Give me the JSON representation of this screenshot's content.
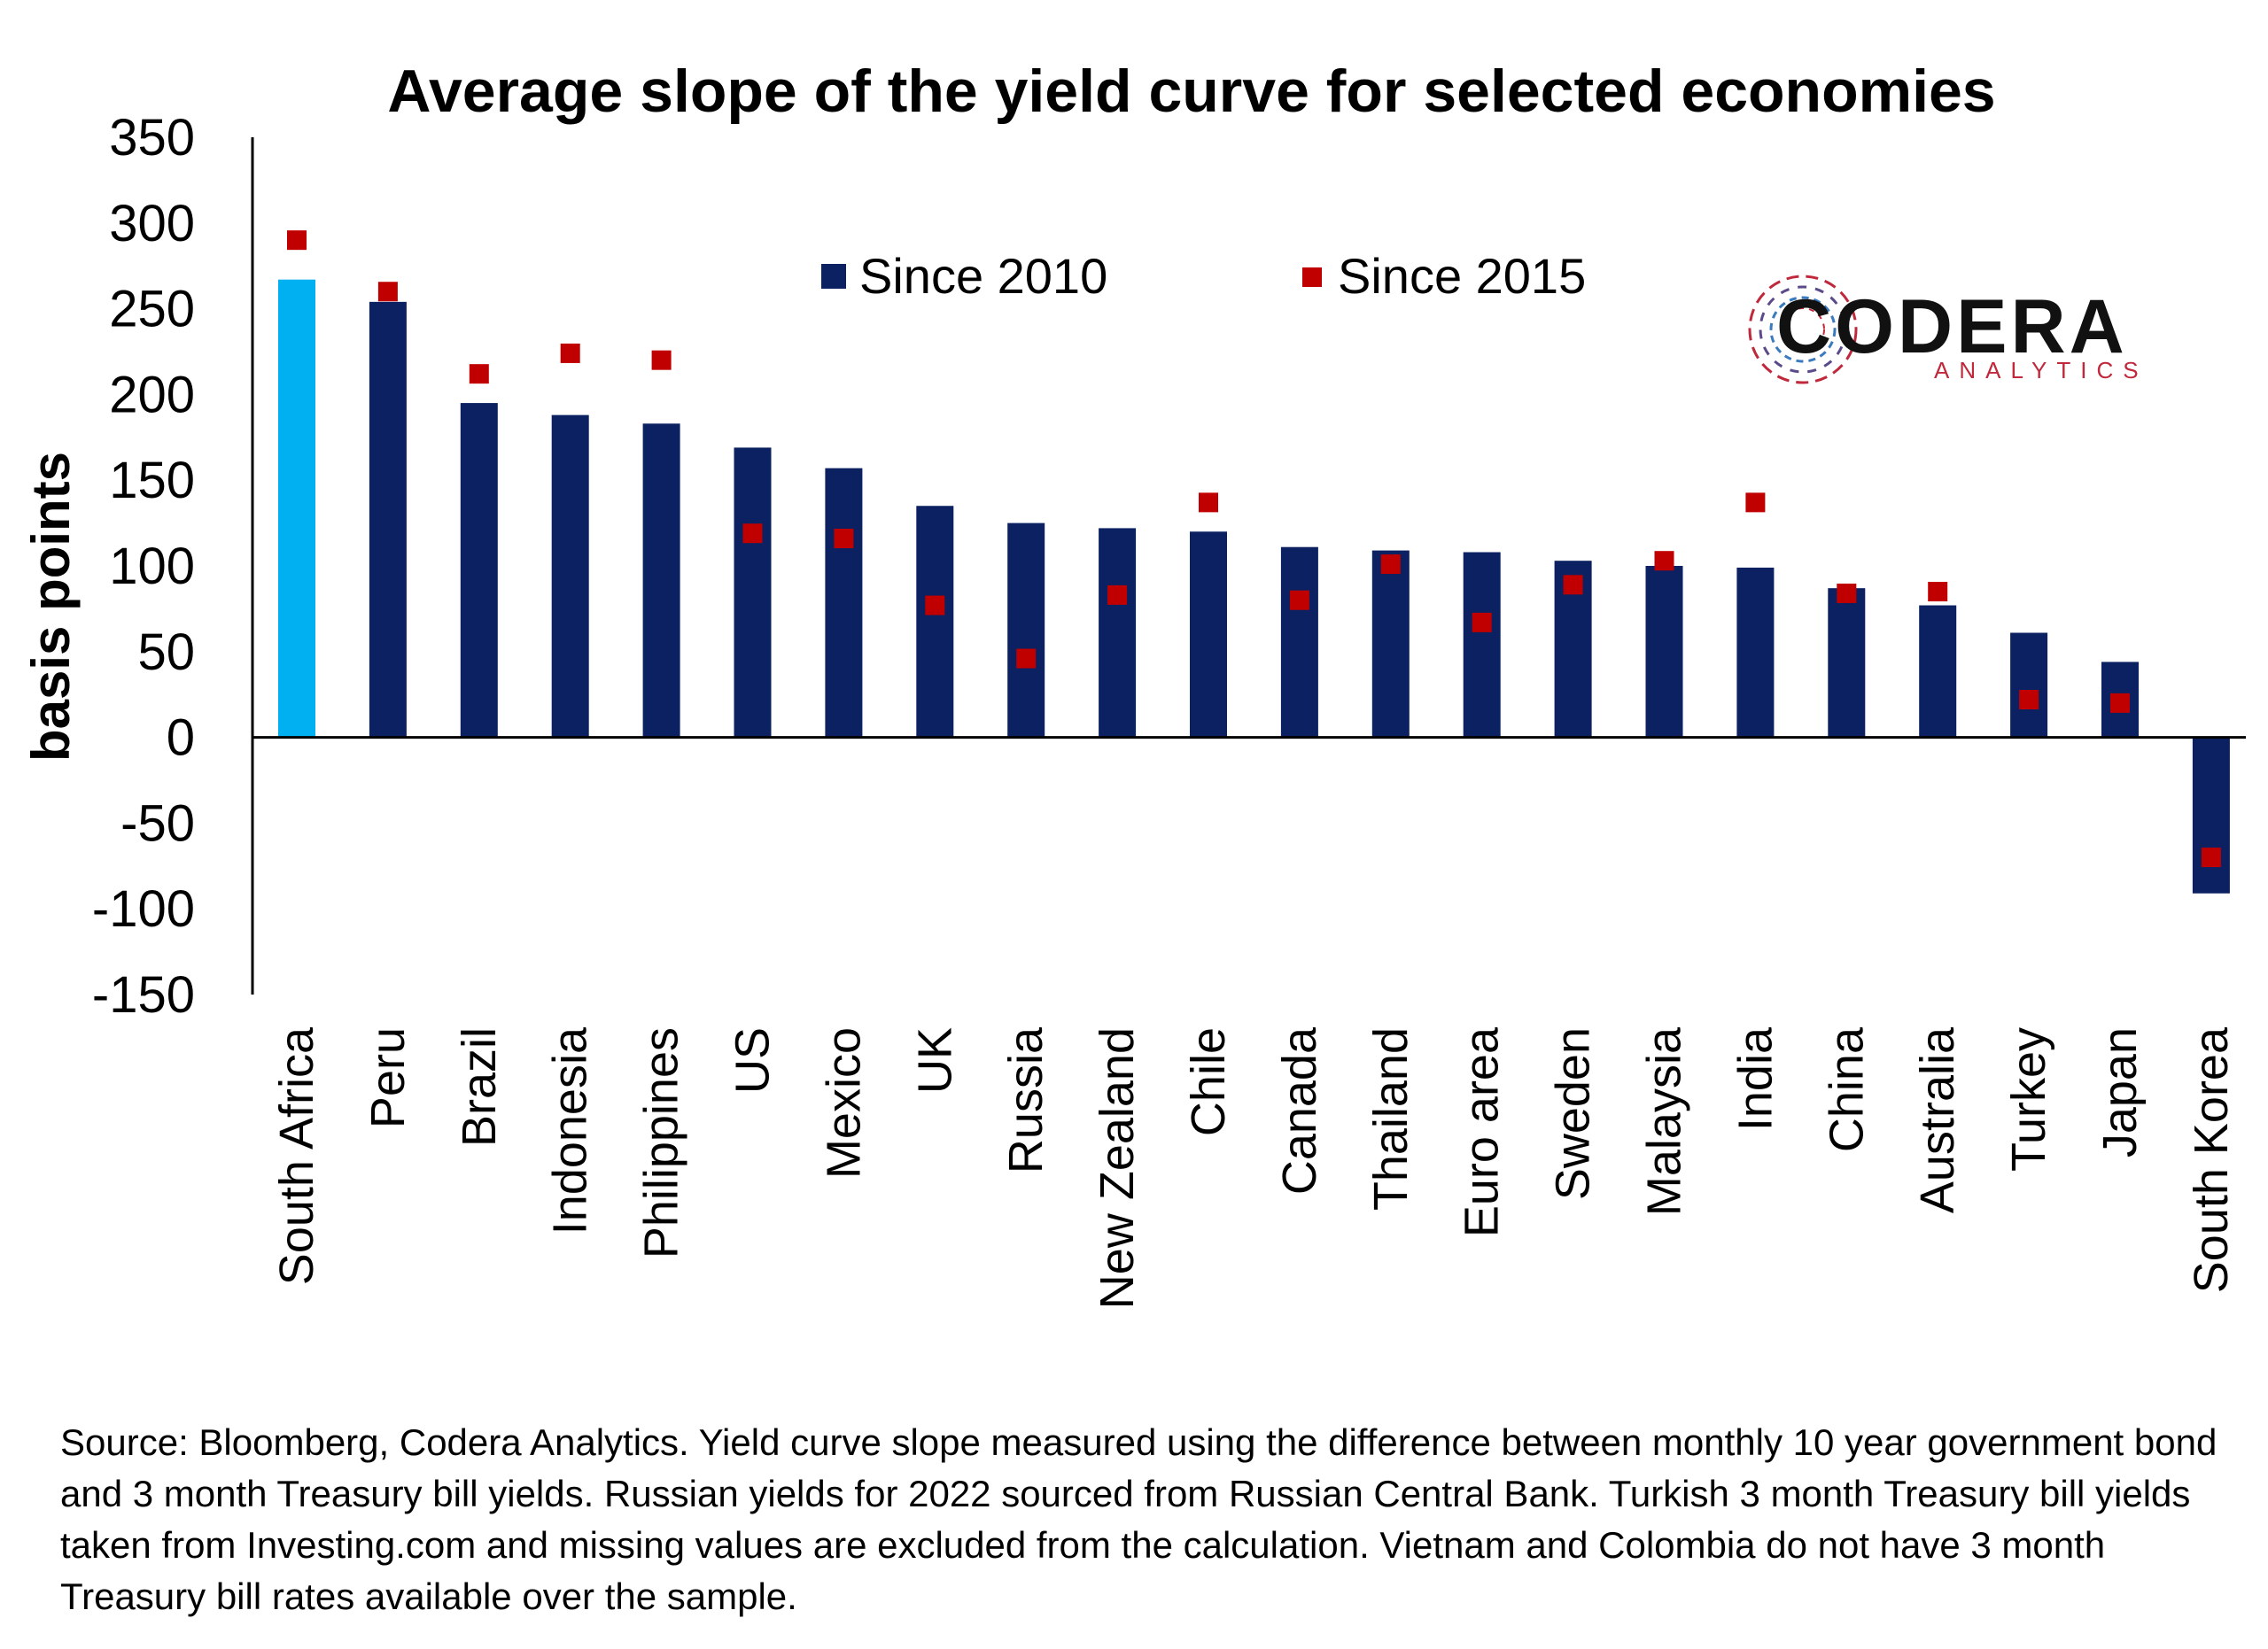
{
  "chart_data": {
    "type": "bar",
    "title": "Average slope of the yield curve for selected economies",
    "ylabel": "basis points",
    "xlabel": "",
    "ylim": [
      -150,
      350
    ],
    "yticks": [
      350,
      300,
      250,
      200,
      150,
      100,
      50,
      0,
      -50,
      -100,
      -150
    ],
    "grid": false,
    "legend_position": "top",
    "categories": [
      "South Africa",
      "Peru",
      "Brazil",
      "Indonesia",
      "Philippines",
      "US",
      "Mexico",
      "UK",
      "Russia",
      "New Zealand",
      "Chile",
      "Canada",
      "Thailand",
      "Euro area",
      "Sweden",
      "Malaysia",
      "India",
      "China",
      "Australia",
      "Turkey",
      "Japan",
      "South Korea"
    ],
    "series": [
      {
        "name": "Since 2010",
        "kind": "bar",
        "color": "#0b2161",
        "highlight_color": "#00b0f0",
        "highlight_category": "South Africa",
        "values": [
          267,
          254,
          195,
          188,
          183,
          169,
          157,
          135,
          125,
          122,
          120,
          111,
          109,
          108,
          103,
          100,
          99,
          87,
          77,
          61,
          44,
          -91
        ]
      },
      {
        "name": "Since 2015",
        "kind": "marker",
        "color": "#c00000",
        "values": [
          290,
          260,
          212,
          224,
          220,
          119,
          116,
          77,
          46,
          83,
          137,
          80,
          101,
          67,
          89,
          103,
          137,
          84,
          85,
          22,
          20,
          -70
        ]
      }
    ]
  },
  "logo": {
    "name": "CODERA",
    "tagline": "ANALYTICS",
    "mark_icon": "circuit-circle-icon"
  },
  "source_note": "Source: Bloomberg, Codera Analytics. Yield curve slope measured using the difference between monthly 10 year government bond  and 3 month Treasury bill yields. Russian yields for 2022 sourced from Russian Central Bank. Turkish 3 month Treasury bill yields taken from Investing.com and missing values are excluded from the calculation. Vietnam and Colombia do not have 3 month Treasury bill rates available over the sample."
}
